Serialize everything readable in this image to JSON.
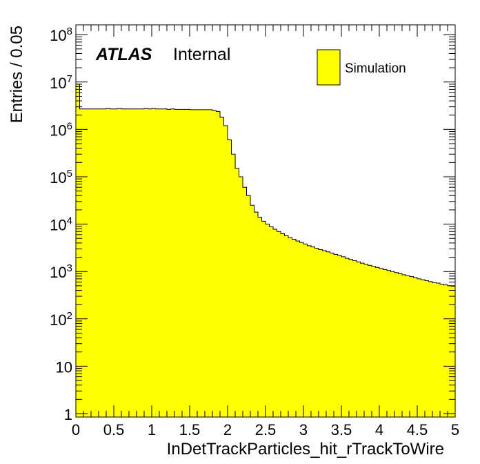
{
  "chart_data": {
    "type": "histogram",
    "xlabel": "InDetTrackParticles_hit_rTrackToWire",
    "ylabel": "Entries / 0.05",
    "xlim": [
      0,
      5
    ],
    "ylim": [
      0.8,
      150000000
    ],
    "log_y": true,
    "bin_width": 0.05,
    "x_ticks": [
      {
        "value": 0,
        "label": "0"
      },
      {
        "value": 0.5,
        "label": "0.5"
      },
      {
        "value": 1,
        "label": "1"
      },
      {
        "value": 1.5,
        "label": "1.5"
      },
      {
        "value": 2,
        "label": "2"
      },
      {
        "value": 2.5,
        "label": "2.5"
      },
      {
        "value": 3,
        "label": "3"
      },
      {
        "value": 3.5,
        "label": "3.5"
      },
      {
        "value": 4,
        "label": "4"
      },
      {
        "value": 4.5,
        "label": "4.5"
      },
      {
        "value": 5,
        "label": "5"
      }
    ],
    "y_ticks": [
      {
        "value": 1,
        "base": "1",
        "exp": ""
      },
      {
        "value": 10,
        "base": "10",
        "exp": ""
      },
      {
        "value": 100,
        "base": "10",
        "exp": "2"
      },
      {
        "value": 1000,
        "base": "10",
        "exp": "3"
      },
      {
        "value": 10000,
        "base": "10",
        "exp": "4"
      },
      {
        "value": 100000,
        "base": "10",
        "exp": "5"
      },
      {
        "value": 1000000,
        "base": "10",
        "exp": "6"
      },
      {
        "value": 10000000,
        "base": "10",
        "exp": "7"
      },
      {
        "value": 100000000,
        "base": "10",
        "exp": "8"
      }
    ],
    "series": [
      {
        "name": "Simulation",
        "fill": "#ffff00",
        "line": "#000000",
        "bin_edges_start": 0,
        "values": [
          9000000,
          2700000,
          2700000,
          2700000,
          2700000,
          2700000,
          2700000,
          2700000,
          2750000,
          2700000,
          2700000,
          2750000,
          2700000,
          2700000,
          2700000,
          2700000,
          2700000,
          2700000,
          2750000,
          2700000,
          2750000,
          2700000,
          2700000,
          2700000,
          2650000,
          2700000,
          2650000,
          2650000,
          2650000,
          2650000,
          2600000,
          2600000,
          2600000,
          2600000,
          2600000,
          2600000,
          2500000,
          2400000,
          1800000,
          1200000,
          600000,
          300000,
          150000,
          100000,
          60000,
          40000,
          25000,
          18000,
          14000,
          11500,
          10000,
          8800,
          7800,
          7000,
          6300,
          5700,
          5200,
          4800,
          4400,
          4100,
          3800,
          3500,
          3300,
          3100,
          2900,
          2750,
          2600,
          2450,
          2300,
          2200,
          2050,
          1900,
          1800,
          1700,
          1600,
          1500,
          1420,
          1350,
          1280,
          1220,
          1160,
          1100,
          1050,
          1000,
          950,
          900,
          850,
          810,
          780,
          740,
          700,
          670,
          640,
          610,
          580,
          570,
          540,
          520,
          500,
          490
        ]
      }
    ],
    "annotation": {
      "brand": "ATLAS",
      "label": "Internal"
    },
    "legend": {
      "entry": "Simulation",
      "placement": "top-right"
    }
  }
}
